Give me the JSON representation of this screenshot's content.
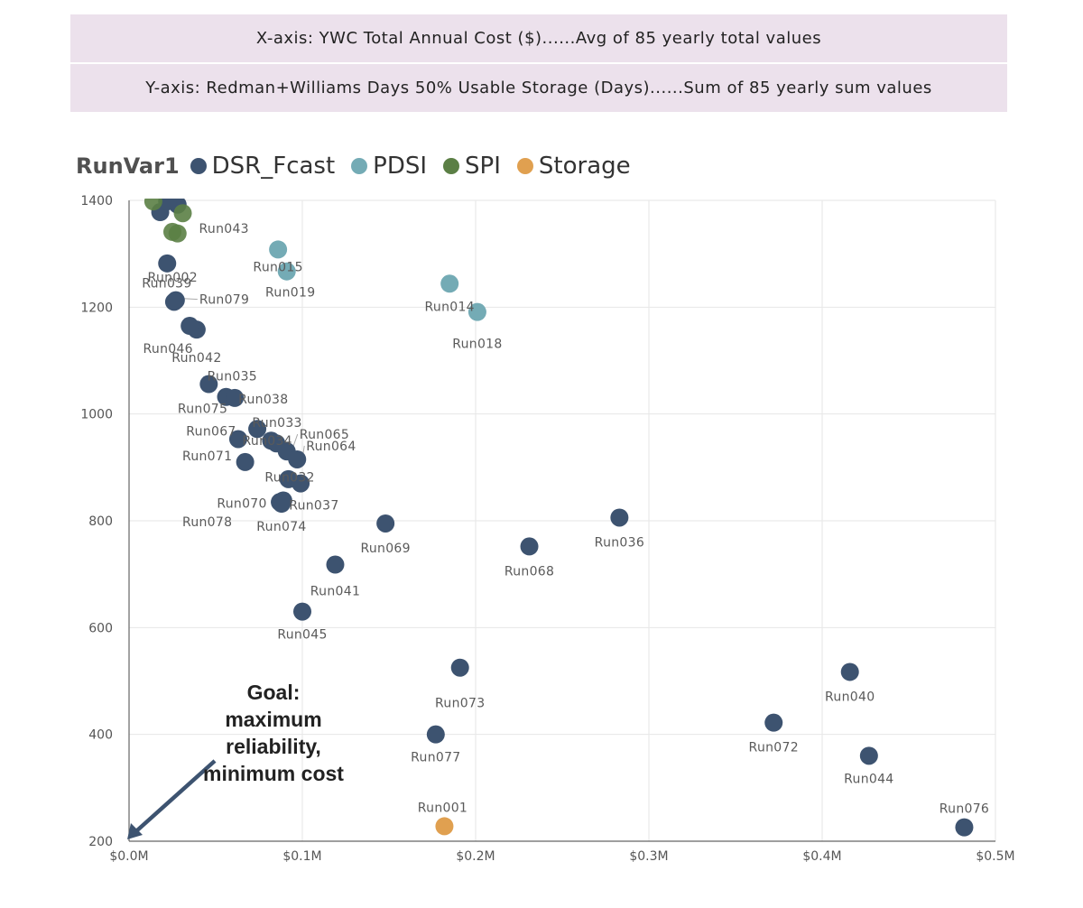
{
  "banners": {
    "x_axis": "X-axis: YWC Total Annual Cost ($)......Avg of 85 yearly total values",
    "y_axis": "Y-axis: Redman+Williams Days 50% Usable Storage (Days)......Sum of 85 yearly sum values"
  },
  "annotation": {
    "goal_line1": "Goal:",
    "goal_line2": "maximum",
    "goal_line3": "reliability,",
    "goal_line4": "minimum cost"
  },
  "chart_data": {
    "type": "scatter",
    "legend_title": "RunVar1",
    "colors": {
      "DSR_Fcast": "#3d5370",
      "PDSI": "#74abb5",
      "SPI": "#5b7f45",
      "Storage": "#e0a050"
    },
    "series_names": [
      "DSR_Fcast",
      "PDSI",
      "SPI",
      "Storage"
    ],
    "xlim": [
      0,
      500000
    ],
    "ylim": [
      200,
      1400
    ],
    "x_ticks": [
      {
        "value": 0,
        "label": "$0.0M"
      },
      {
        "value": 100000,
        "label": "$0.1M"
      },
      {
        "value": 200000,
        "label": "$0.2M"
      },
      {
        "value": 300000,
        "label": "$0.3M"
      },
      {
        "value": 400000,
        "label": "$0.4M"
      },
      {
        "value": 500000,
        "label": "$0.5M"
      }
    ],
    "y_ticks": [
      {
        "value": 200,
        "label": "200"
      },
      {
        "value": 400,
        "label": "400"
      },
      {
        "value": 600,
        "label": "600"
      },
      {
        "value": 800,
        "label": "800"
      },
      {
        "value": 1000,
        "label": "1000"
      },
      {
        "value": 1200,
        "label": "1200"
      },
      {
        "value": 1400,
        "label": "1400"
      }
    ],
    "points": [
      {
        "series": "DSR_Fcast",
        "x": 18000,
        "y": 1378,
        "label": ""
      },
      {
        "series": "DSR_Fcast",
        "x": 28000,
        "y": 1392,
        "label": ""
      },
      {
        "series": "DSR_Fcast",
        "x": 22000,
        "y": 1398,
        "label": ""
      },
      {
        "series": "SPI",
        "x": 14000,
        "y": 1398,
        "label": ""
      },
      {
        "series": "SPI",
        "x": 31000,
        "y": 1376,
        "label": "Run043"
      },
      {
        "series": "SPI",
        "x": 25000,
        "y": 1341,
        "label": ""
      },
      {
        "series": "SPI",
        "x": 28000,
        "y": 1338,
        "label": ""
      },
      {
        "series": "DSR_Fcast",
        "x": 22000,
        "y": 1282,
        "label": "Run002"
      },
      {
        "series": "PDSI",
        "x": 86000,
        "y": 1308,
        "label": "Run015"
      },
      {
        "series": "PDSI",
        "x": 91000,
        "y": 1267,
        "label": "Run019"
      },
      {
        "series": "DSR_Fcast",
        "x": 26000,
        "y": 1210,
        "label": "Run039"
      },
      {
        "series": "DSR_Fcast",
        "x": 27000,
        "y": 1213,
        "label": "Run079"
      },
      {
        "series": "DSR_Fcast",
        "x": 39000,
        "y": 1158,
        "label": "Run042"
      },
      {
        "series": "DSR_Fcast",
        "x": 35000,
        "y": 1165,
        "label": "Run046"
      },
      {
        "series": "PDSI",
        "x": 185000,
        "y": 1244,
        "label": "Run014"
      },
      {
        "series": "PDSI",
        "x": 201000,
        "y": 1191,
        "label": "Run018"
      },
      {
        "series": "DSR_Fcast",
        "x": 46000,
        "y": 1056,
        "label": "Run035"
      },
      {
        "series": "DSR_Fcast",
        "x": 56000,
        "y": 1032,
        "label": "Run075"
      },
      {
        "series": "DSR_Fcast",
        "x": 61000,
        "y": 1030,
        "label": "Run038"
      },
      {
        "series": "DSR_Fcast",
        "x": 63000,
        "y": 953,
        "label": "Run067"
      },
      {
        "series": "DSR_Fcast",
        "x": 74000,
        "y": 972,
        "label": "Run033"
      },
      {
        "series": "DSR_Fcast",
        "x": 82000,
        "y": 950,
        "label": ""
      },
      {
        "series": "DSR_Fcast",
        "x": 85000,
        "y": 945,
        "label": "Run034"
      },
      {
        "series": "DSR_Fcast",
        "x": 91000,
        "y": 930,
        "label": "Run065"
      },
      {
        "series": "DSR_Fcast",
        "x": 97000,
        "y": 915,
        "label": "Run064"
      },
      {
        "series": "DSR_Fcast",
        "x": 67000,
        "y": 910,
        "label": "Run071"
      },
      {
        "series": "DSR_Fcast",
        "x": 92000,
        "y": 878,
        "label": "Run078"
      },
      {
        "series": "DSR_Fcast",
        "x": 99000,
        "y": 870,
        "label": "Run032"
      },
      {
        "series": "DSR_Fcast",
        "x": 87000,
        "y": 835,
        "label": "Run070"
      },
      {
        "series": "DSR_Fcast",
        "x": 89000,
        "y": 838,
        "label": "Run037"
      },
      {
        "series": "DSR_Fcast",
        "x": 88000,
        "y": 832,
        "label": "Run074"
      },
      {
        "series": "DSR_Fcast",
        "x": 148000,
        "y": 795,
        "label": "Run069"
      },
      {
        "series": "DSR_Fcast",
        "x": 283000,
        "y": 806,
        "label": "Run036"
      },
      {
        "series": "DSR_Fcast",
        "x": 231000,
        "y": 752,
        "label": "Run068"
      },
      {
        "series": "DSR_Fcast",
        "x": 119000,
        "y": 718,
        "label": "Run041"
      },
      {
        "series": "DSR_Fcast",
        "x": 100000,
        "y": 630,
        "label": "Run045"
      },
      {
        "series": "DSR_Fcast",
        "x": 191000,
        "y": 525,
        "label": "Run073"
      },
      {
        "series": "DSR_Fcast",
        "x": 416000,
        "y": 517,
        "label": "Run040"
      },
      {
        "series": "DSR_Fcast",
        "x": 372000,
        "y": 422,
        "label": "Run072"
      },
      {
        "series": "DSR_Fcast",
        "x": 177000,
        "y": 400,
        "label": "Run077"
      },
      {
        "series": "DSR_Fcast",
        "x": 427000,
        "y": 360,
        "label": "Run044"
      },
      {
        "series": "Storage",
        "x": 182000,
        "y": 228,
        "label": "Run001"
      },
      {
        "series": "DSR_Fcast",
        "x": 482000,
        "y": 226,
        "label": "Run076"
      }
    ]
  }
}
